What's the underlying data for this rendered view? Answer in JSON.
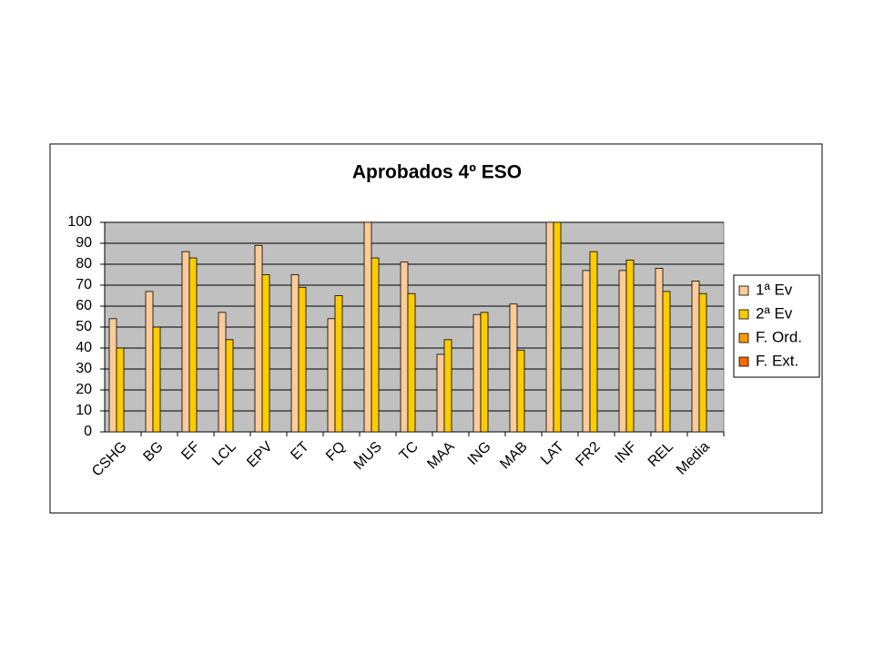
{
  "chart_data": {
    "type": "bar",
    "title": "Aprobados 4º ESO",
    "categories": [
      "CSHG",
      "BG",
      "EF",
      "LCL",
      "EPV",
      "ET",
      "FQ",
      "MUS",
      "TC",
      "MAA",
      "ING",
      "MAB",
      "LAT",
      "FR2",
      "INF",
      "REL",
      "Media"
    ],
    "series": [
      {
        "name": "1ª Ev",
        "color": "#FFCC99",
        "values": [
          54,
          67,
          86,
          57,
          89,
          75,
          54,
          100,
          81,
          37,
          56,
          61,
          100,
          77,
          77,
          78,
          72
        ]
      },
      {
        "name": "2ª Ev",
        "color": "#FFCC00",
        "values": [
          40,
          50,
          83,
          44,
          75,
          69,
          65,
          83,
          66,
          44,
          57,
          39,
          100,
          86,
          82,
          67,
          66
        ]
      },
      {
        "name": "F. Ord.",
        "color": "#FF9900",
        "values": [
          null,
          null,
          null,
          null,
          null,
          null,
          null,
          null,
          null,
          null,
          null,
          null,
          null,
          null,
          null,
          null,
          null
        ]
      },
      {
        "name": "F. Ext.",
        "color": "#FF6600",
        "values": [
          null,
          null,
          null,
          null,
          null,
          null,
          null,
          null,
          null,
          null,
          null,
          null,
          null,
          null,
          null,
          null,
          null
        ]
      }
    ],
    "ylim": [
      0,
      100
    ],
    "yticks": [
      0,
      10,
      20,
      30,
      40,
      50,
      60,
      70,
      80,
      90,
      100
    ],
    "grid": true,
    "legend": "right"
  }
}
